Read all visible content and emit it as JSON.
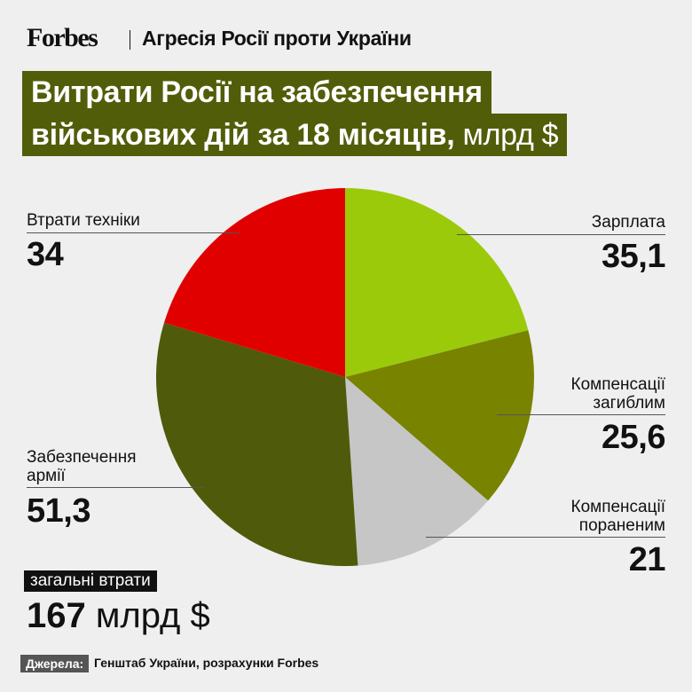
{
  "header": {
    "logo": "Forbes",
    "kicker": "Агресія Росії проти України"
  },
  "title": {
    "line1": "Витрати Росії на забезпечення",
    "line2": "військових дій за 18 місяців,",
    "unit": "млрд $"
  },
  "chart_data": {
    "type": "pie",
    "start": "12 o'clock, clockwise",
    "slices": [
      {
        "label": "Зарплата",
        "value": 35.1,
        "value_text": "35,1",
        "color": "#9bca0b"
      },
      {
        "label": "Компенсації загиблим",
        "value": 25.6,
        "value_text": "25,6",
        "color": "#788300"
      },
      {
        "label": "Компенсації пораненим",
        "value": 21,
        "value_text": "21",
        "color": "#c6c6c6"
      },
      {
        "label": "Забезпечення армії",
        "value": 51.3,
        "value_text": "51,3",
        "color": "#4f5a0b"
      },
      {
        "label": "Втрати техніки",
        "value": 34,
        "value_text": "34",
        "color": "#e10000"
      }
    ]
  },
  "total": {
    "label": "загальні втрати",
    "value": "167",
    "unit": "млрд $"
  },
  "source": {
    "label": "Джерела:",
    "text": "Генштаб України, розрахунки Forbes"
  }
}
